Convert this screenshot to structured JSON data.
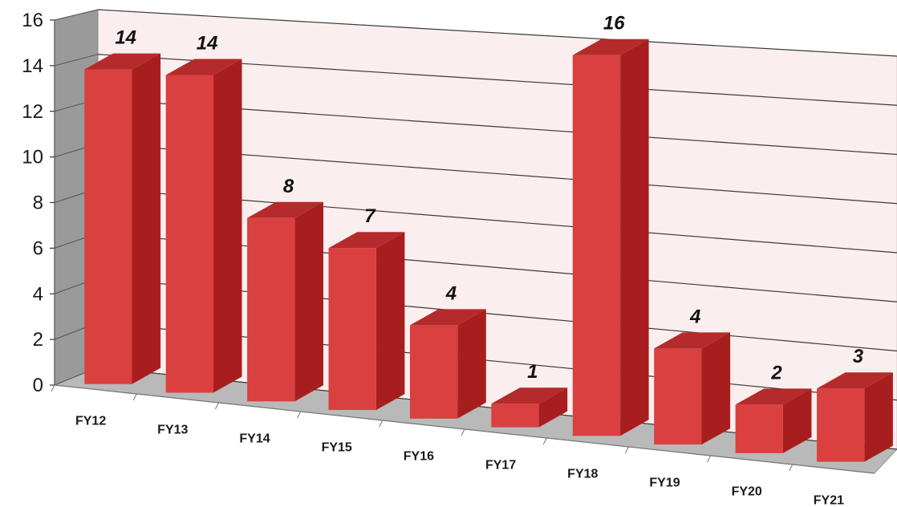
{
  "chart_data": {
    "type": "bar",
    "title": "",
    "xlabel": "",
    "ylabel": "",
    "categories": [
      "FY12",
      "FY13",
      "FY14",
      "FY15",
      "FY16",
      "FY17",
      "FY18",
      "FY19",
      "FY20",
      "FY21"
    ],
    "values": [
      14,
      14,
      8,
      7,
      4,
      1,
      16,
      4,
      2,
      3
    ],
    "data_labels": [
      "14",
      "14",
      "8",
      "7",
      "4",
      "1",
      "16",
      "4",
      "2",
      "3"
    ],
    "yticks": [
      "0",
      "2",
      "4",
      "6",
      "8",
      "10",
      "12",
      "14",
      "16"
    ],
    "ylim": [
      0,
      16
    ],
    "grid": true,
    "legend": "none",
    "style": "3d-perspective",
    "colors": {
      "bar_front": "#d9403f",
      "bar_side": "#a81e1e",
      "bar_top": "#b52a2a",
      "back_wall": "#fbeeee",
      "side_wall": "#9a9a9a",
      "floor": "#b9b9b9",
      "gridline": "#3a3a3a"
    }
  }
}
